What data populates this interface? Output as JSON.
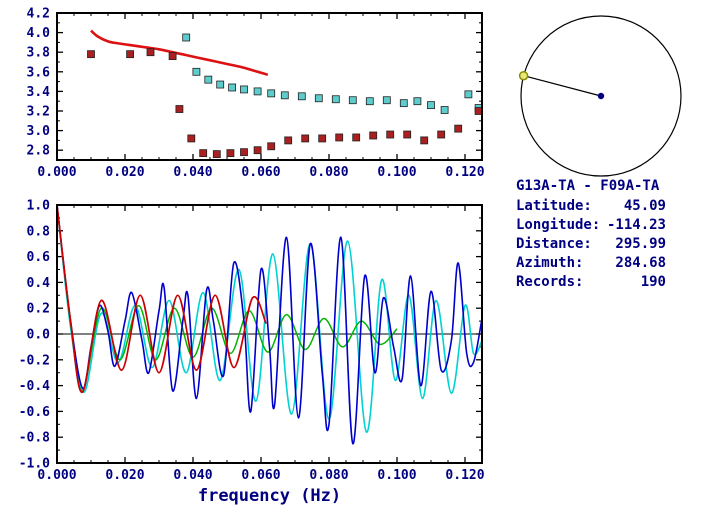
{
  "colors": {
    "axis_text": "#000080",
    "frame": "#000000",
    "red_line": "#dd1111",
    "red_square": "#aa2020",
    "cyan_square": "#5ecccc",
    "trace_blue": "#0000cc",
    "trace_cyan": "#00d2d2",
    "trace_green": "#00b400",
    "trace_red": "#cc0000",
    "marker_yellow_fill": "#e8e87a",
    "marker_yellow_edge": "#8b8b00",
    "marker_navy": "#000080"
  },
  "info": {
    "title": "G13A-TA - F09A-TA",
    "rows": [
      {
        "label": "Latitude:",
        "value": "45.09"
      },
      {
        "label": "Longitude:",
        "value": "-114.23"
      },
      {
        "label": "Distance:",
        "value": "295.99"
      },
      {
        "label": "Azimuth:",
        "value": "284.68"
      },
      {
        "label": "Records:",
        "value": "190"
      }
    ]
  },
  "chart_data": [
    {
      "type": "scatter",
      "name": "dispersion-chart",
      "title": "",
      "xlabel": "",
      "ylabel": "",
      "xlim": [
        0,
        0.125
      ],
      "ylim": [
        2.7,
        4.2
      ],
      "xtick_values": [
        0,
        0.02,
        0.04,
        0.06,
        0.08,
        0.1,
        0.12
      ],
      "xtick_labels": [
        "0.000",
        "0.020",
        "0.040",
        "0.060",
        "0.080",
        "0.100",
        "0.120"
      ],
      "ytick_values": [
        2.8,
        3.0,
        3.2,
        3.4,
        3.6,
        3.8,
        4.0,
        4.2
      ],
      "ytick_labels": [
        "2.8",
        "3.0",
        "3.2",
        "3.4",
        "3.6",
        "3.8",
        "4.0",
        "4.2"
      ],
      "series": [
        {
          "name": "reference-dispersion-curve",
          "marker": "line",
          "color_key": "red_line",
          "width": 2.6,
          "points": [
            [
              0.01,
              4.02
            ],
            [
              0.012,
              3.96
            ],
            [
              0.015,
              3.91
            ],
            [
              0.018,
              3.89
            ],
            [
              0.022,
              3.87
            ],
            [
              0.026,
              3.85
            ],
            [
              0.03,
              3.83
            ],
            [
              0.034,
              3.8
            ],
            [
              0.038,
              3.77
            ],
            [
              0.042,
              3.74
            ],
            [
              0.046,
              3.71
            ],
            [
              0.05,
              3.68
            ],
            [
              0.054,
              3.65
            ],
            [
              0.058,
              3.61
            ],
            [
              0.062,
              3.57
            ]
          ]
        },
        {
          "name": "phase-velocity-picks",
          "marker": "square",
          "color_key": "cyan_square",
          "points": [
            [
              0.038,
              3.95
            ],
            [
              0.041,
              3.6
            ],
            [
              0.0445,
              3.52
            ],
            [
              0.048,
              3.47
            ],
            [
              0.0515,
              3.44
            ],
            [
              0.055,
              3.42
            ],
            [
              0.059,
              3.4
            ],
            [
              0.063,
              3.38
            ],
            [
              0.067,
              3.36
            ],
            [
              0.072,
              3.35
            ],
            [
              0.077,
              3.33
            ],
            [
              0.082,
              3.32
            ],
            [
              0.087,
              3.31
            ],
            [
              0.092,
              3.3
            ],
            [
              0.097,
              3.31
            ],
            [
              0.102,
              3.28
            ],
            [
              0.106,
              3.3
            ],
            [
              0.11,
              3.26
            ],
            [
              0.114,
              3.21
            ],
            [
              0.121,
              3.37
            ],
            [
              0.124,
              3.23
            ]
          ]
        },
        {
          "name": "group-velocity-picks",
          "marker": "square",
          "color_key": "red_square",
          "points": [
            [
              0.01,
              3.78
            ],
            [
              0.0215,
              3.78
            ],
            [
              0.0275,
              3.8
            ],
            [
              0.034,
              3.76
            ],
            [
              0.036,
              3.22
            ],
            [
              0.0395,
              2.92
            ],
            [
              0.043,
              2.77
            ],
            [
              0.047,
              2.76
            ],
            [
              0.051,
              2.77
            ],
            [
              0.055,
              2.78
            ],
            [
              0.059,
              2.8
            ],
            [
              0.063,
              2.84
            ],
            [
              0.068,
              2.9
            ],
            [
              0.073,
              2.92
            ],
            [
              0.078,
              2.92
            ],
            [
              0.083,
              2.93
            ],
            [
              0.088,
              2.93
            ],
            [
              0.093,
              2.95
            ],
            [
              0.098,
              2.96
            ],
            [
              0.103,
              2.96
            ],
            [
              0.108,
              2.9
            ],
            [
              0.113,
              2.96
            ],
            [
              0.118,
              3.02
            ],
            [
              0.124,
              3.2
            ]
          ]
        }
      ]
    },
    {
      "type": "line",
      "name": "cross-spectrum-chart",
      "title": "",
      "xlabel": "frequency (Hz)",
      "ylabel": "",
      "zero_line": true,
      "xlim": [
        0,
        0.125
      ],
      "ylim": [
        -1.0,
        1.0
      ],
      "xtick_values": [
        0,
        0.02,
        0.04,
        0.06,
        0.08,
        0.1,
        0.12
      ],
      "xtick_labels": [
        "0.000",
        "0.020",
        "0.040",
        "0.060",
        "0.080",
        "0.100",
        "0.120"
      ],
      "ytick_values": [
        1.0,
        0.8,
        0.6,
        0.4,
        0.2,
        0.0,
        -0.2,
        -0.4,
        -0.6,
        -0.8,
        -1.0
      ],
      "ytick_labels": [
        "1.0",
        "0.8",
        "0.6",
        "0.4",
        "0.2",
        "0.0",
        "-0.2",
        "-0.4",
        "-0.6",
        "-0.8",
        "-1.0"
      ],
      "series": [
        {
          "name": "trace-cyan",
          "marker": "line",
          "color_key": "trace_cyan",
          "width": 1.6,
          "points": [
            [
              0,
              1.0
            ],
            [
              0.004,
              0.05
            ],
            [
              0.008,
              -0.45
            ],
            [
              0.013,
              0.16
            ],
            [
              0.018,
              -0.22
            ],
            [
              0.023,
              0.22
            ],
            [
              0.028,
              -0.26
            ],
            [
              0.033,
              0.26
            ],
            [
              0.038,
              -0.3
            ],
            [
              0.043,
              0.32
            ],
            [
              0.048,
              -0.36
            ],
            [
              0.0535,
              0.5
            ],
            [
              0.0585,
              -0.52
            ],
            [
              0.0635,
              0.62
            ],
            [
              0.069,
              -0.62
            ],
            [
              0.0745,
              0.7
            ],
            [
              0.08,
              -0.66
            ],
            [
              0.0855,
              0.72
            ],
            [
              0.091,
              -0.76
            ],
            [
              0.0955,
              0.42
            ],
            [
              0.0995,
              -0.36
            ],
            [
              0.1035,
              0.3
            ],
            [
              0.1075,
              -0.5
            ],
            [
              0.1115,
              0.26
            ],
            [
              0.116,
              -0.46
            ],
            [
              0.12,
              0.22
            ],
            [
              0.1225,
              -0.15
            ],
            [
              0.125,
              -0.05
            ]
          ]
        },
        {
          "name": "trace-green",
          "marker": "line",
          "color_key": "trace_green",
          "width": 1.5,
          "points": [
            [
              0,
              1.0
            ],
            [
              0.004,
              0.08
            ],
            [
              0.0075,
              -0.44
            ],
            [
              0.013,
              0.2
            ],
            [
              0.0185,
              -0.2
            ],
            [
              0.024,
              0.22
            ],
            [
              0.029,
              -0.2
            ],
            [
              0.0345,
              0.2
            ],
            [
              0.04,
              -0.18
            ],
            [
              0.0455,
              0.2
            ],
            [
              0.051,
              -0.15
            ],
            [
              0.0565,
              0.18
            ],
            [
              0.062,
              -0.14
            ],
            [
              0.0675,
              0.15
            ],
            [
              0.073,
              -0.12
            ],
            [
              0.0785,
              0.12
            ],
            [
              0.084,
              -0.1
            ],
            [
              0.0895,
              0.1
            ],
            [
              0.095,
              -0.08
            ],
            [
              0.1,
              0.04
            ]
          ]
        },
        {
          "name": "trace-blue",
          "marker": "line",
          "color_key": "trace_blue",
          "width": 1.6,
          "points": [
            [
              0,
              1.0
            ],
            [
              0.004,
              0.1
            ],
            [
              0.0075,
              -0.42
            ],
            [
              0.01,
              -0.1
            ],
            [
              0.0125,
              0.22
            ],
            [
              0.015,
              0.02
            ],
            [
              0.017,
              -0.25
            ],
            [
              0.02,
              0.1
            ],
            [
              0.022,
              0.32
            ],
            [
              0.025,
              -0.05
            ],
            [
              0.027,
              -0.3
            ],
            [
              0.03,
              0.18
            ],
            [
              0.0315,
              0.36
            ],
            [
              0.034,
              -0.44
            ],
            [
              0.037,
              0.1
            ],
            [
              0.0385,
              0.3
            ],
            [
              0.041,
              -0.5
            ],
            [
              0.044,
              0.34
            ],
            [
              0.046,
              0.1
            ],
            [
              0.049,
              -0.32
            ],
            [
              0.052,
              0.55
            ],
            [
              0.055,
              0.1
            ],
            [
              0.057,
              -0.6
            ],
            [
              0.06,
              0.5
            ],
            [
              0.0625,
              -0.1
            ],
            [
              0.064,
              -0.55
            ],
            [
              0.0675,
              0.75
            ],
            [
              0.071,
              -0.65
            ],
            [
              0.0745,
              0.7
            ],
            [
              0.078,
              -0.3
            ],
            [
              0.08,
              -0.7
            ],
            [
              0.0835,
              0.75
            ],
            [
              0.087,
              -0.85
            ],
            [
              0.0905,
              0.45
            ],
            [
              0.0935,
              -0.3
            ],
            [
              0.096,
              0.28
            ],
            [
              0.099,
              -0.1
            ],
            [
              0.1015,
              -0.35
            ],
            [
              0.104,
              0.45
            ],
            [
              0.107,
              -0.4
            ],
            [
              0.11,
              0.33
            ],
            [
              0.113,
              -0.28
            ],
            [
              0.116,
              -0.05
            ],
            [
              0.118,
              0.55
            ],
            [
              0.1205,
              -0.15
            ],
            [
              0.1225,
              -0.22
            ],
            [
              0.125,
              0.12
            ]
          ]
        },
        {
          "name": "trace-red",
          "marker": "line",
          "color_key": "trace_red",
          "width": 1.7,
          "points": [
            [
              0,
              1.0
            ],
            [
              0.004,
              0.1
            ],
            [
              0.0075,
              -0.45
            ],
            [
              0.013,
              0.26
            ],
            [
              0.019,
              -0.28
            ],
            [
              0.0245,
              0.3
            ],
            [
              0.03,
              -0.3
            ],
            [
              0.0355,
              0.3
            ],
            [
              0.041,
              -0.28
            ],
            [
              0.0465,
              0.3
            ],
            [
              0.052,
              -0.26
            ],
            [
              0.0575,
              0.28
            ],
            [
              0.0615,
              0.08
            ]
          ]
        }
      ]
    },
    {
      "type": "other",
      "name": "azimuth-diagram",
      "azimuth_deg": 284.68,
      "rim_marker": "open-yellow-circle",
      "center_marker": "navy-dot"
    }
  ]
}
